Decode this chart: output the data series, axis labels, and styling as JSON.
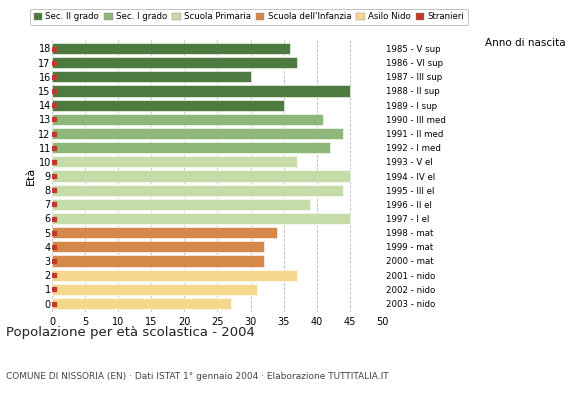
{
  "ages": [
    18,
    17,
    16,
    15,
    14,
    13,
    12,
    11,
    10,
    9,
    8,
    7,
    6,
    5,
    4,
    3,
    2,
    1,
    0
  ],
  "values": [
    36,
    37,
    30,
    45,
    35,
    41,
    44,
    42,
    37,
    45,
    44,
    39,
    45,
    34,
    32,
    32,
    37,
    31,
    27
  ],
  "right_labels": [
    "1985 - V sup",
    "1986 - VI sup",
    "1987 - III sup",
    "1988 - II sup",
    "1989 - I sup",
    "1990 - III med",
    "1991 - II med",
    "1992 - I med",
    "1993 - V el",
    "1994 - IV el",
    "1995 - III el",
    "1996 - II el",
    "1997 - I el",
    "1998 - mat",
    "1999 - mat",
    "2000 - mat",
    "2001 - nido",
    "2002 - nido",
    "2003 - nido"
  ],
  "bar_colors": [
    "#4d7a3e",
    "#4d7a3e",
    "#4d7a3e",
    "#4d7a3e",
    "#4d7a3e",
    "#8db87a",
    "#8db87a",
    "#8db87a",
    "#c5dba8",
    "#c5dba8",
    "#c5dba8",
    "#c5dba8",
    "#c5dba8",
    "#d4894a",
    "#d4894a",
    "#d4894a",
    "#f5d78e",
    "#f5d78e",
    "#f5d78e"
  ],
  "stranieri_color": "#c0392b",
  "legend_labels": [
    "Sec. II grado",
    "Sec. I grado",
    "Scuola Primaria",
    "Scuola dell'Infanzia",
    "Asilo Nido",
    "Stranieri"
  ],
  "legend_colors": [
    "#4d7a3e",
    "#8db87a",
    "#c5dba8",
    "#d4894a",
    "#f5d78e",
    "#c0392b"
  ],
  "title": "Popolazione per età scolastica - 2004",
  "subtitle": "COMUNE DI NISSORIA (EN) · Dati ISTAT 1° gennaio 2004 · Elaborazione TUTTITALIA.IT",
  "ylabel_left": "Età",
  "ylabel_right": "Anno di nascita",
  "xlim": [
    0,
    50
  ],
  "xticks": [
    0,
    5,
    10,
    15,
    20,
    25,
    30,
    35,
    40,
    45,
    50
  ],
  "background_color": "#ffffff",
  "grid_color": "#bbbbbb"
}
